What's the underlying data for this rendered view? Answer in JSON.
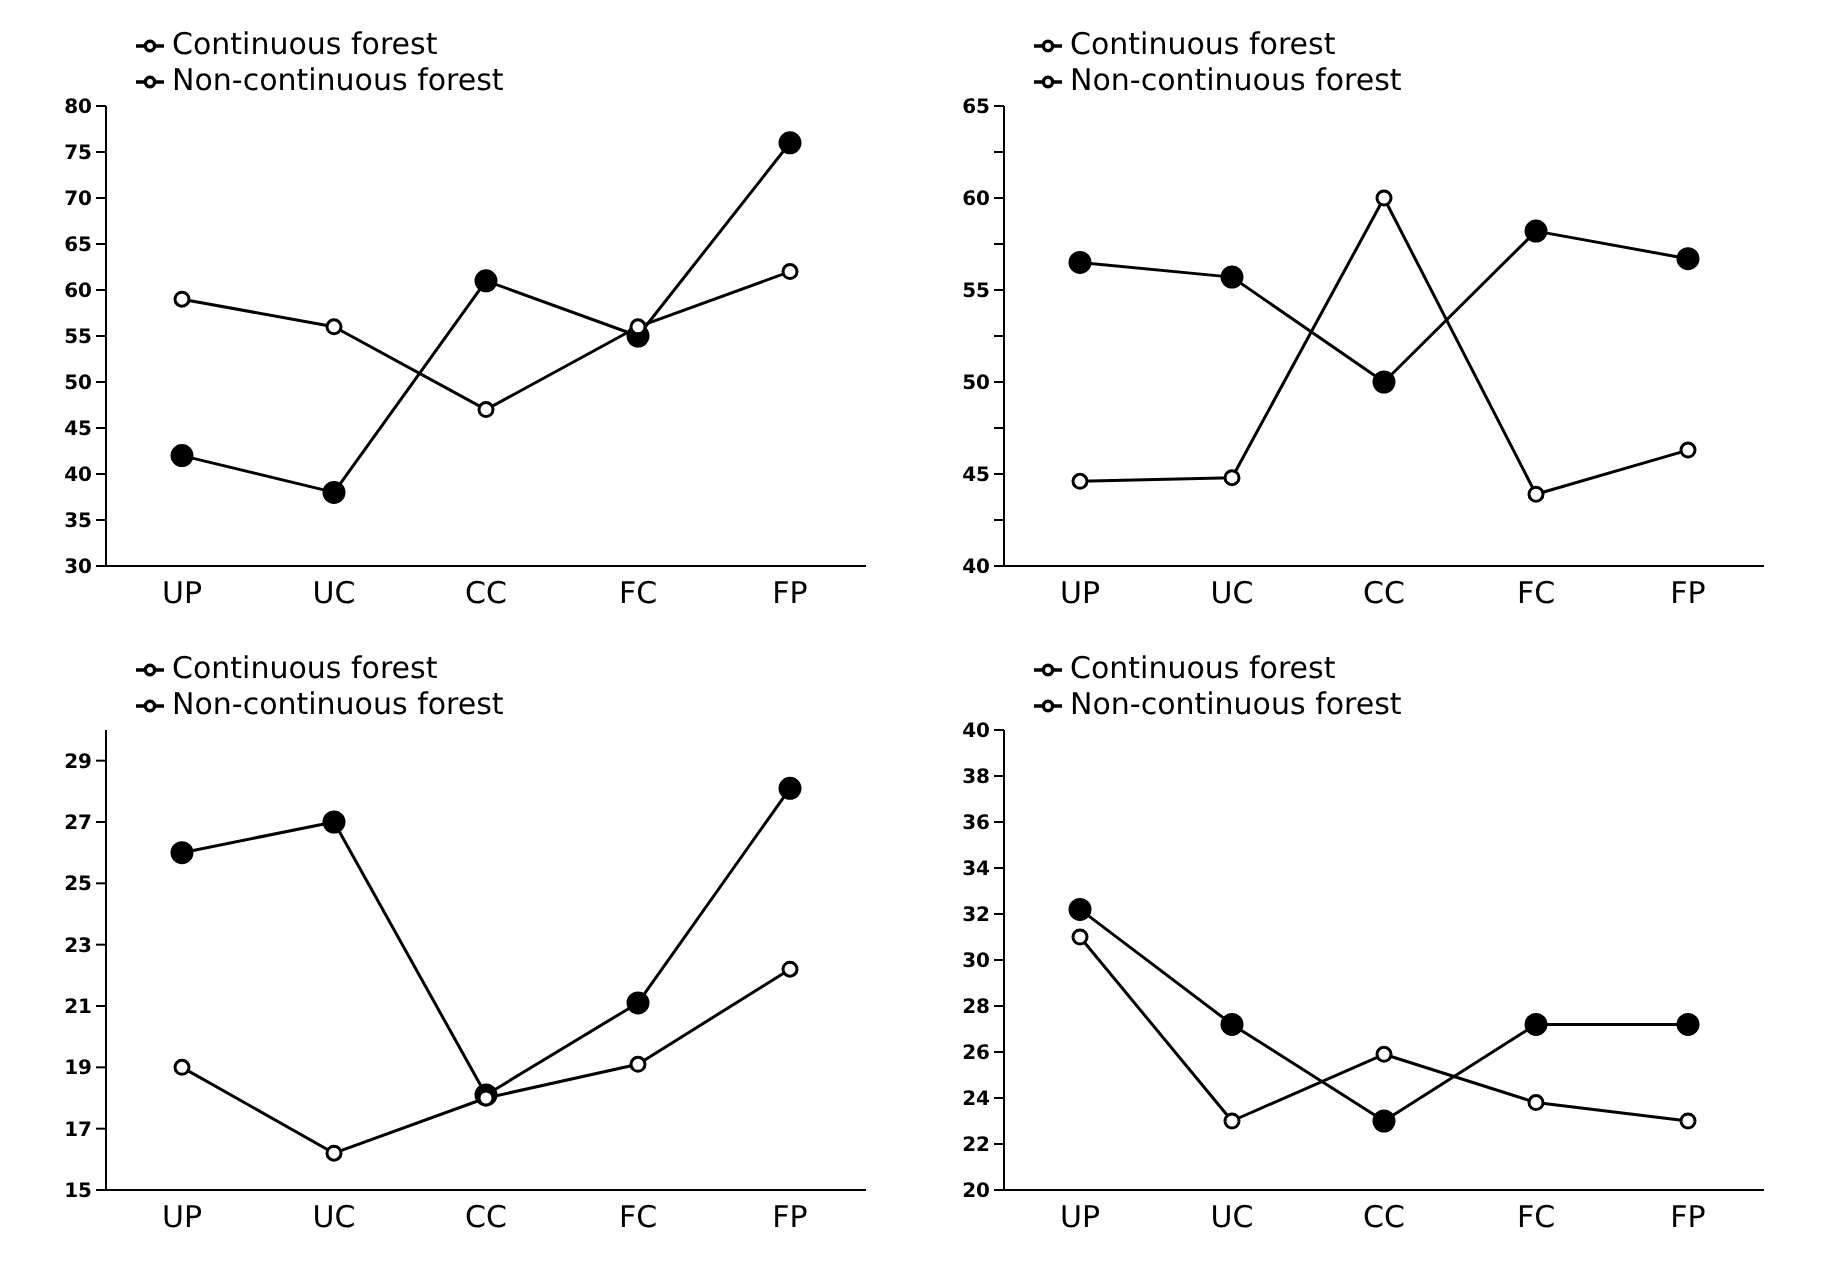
{
  "chart_data": [
    {
      "type": "line",
      "categories": [
        "UP",
        "UC",
        "CC",
        "FC",
        "FP"
      ],
      "ylim": [
        30,
        80
      ],
      "yticks": [
        30,
        35,
        40,
        45,
        50,
        55,
        60,
        65,
        70,
        75,
        80
      ],
      "marker": "circle",
      "legend": "top left",
      "grid": false,
      "series": [
        {
          "name": "Continuous forest",
          "color": "#000000",
          "values": [
            42,
            38,
            61,
            55,
            76
          ]
        },
        {
          "name": "Non-continuous forest",
          "color": "#000000",
          "values": [
            59,
            56,
            47,
            56,
            62
          ]
        }
      ]
    },
    {
      "type": "line",
      "categories": [
        "UP",
        "UC",
        "CC",
        "FC",
        "FP"
      ],
      "ylim": [
        40,
        65
      ],
      "yticks": [
        40,
        {
          "value": 42.5,
          "label": null
        },
        45,
        {
          "value": 47.5,
          "label": null
        },
        50,
        {
          "value": 52.5,
          "label": null
        },
        55,
        {
          "value": 57.5,
          "label": null
        },
        60,
        {
          "value": 62.5,
          "label": null
        },
        65
      ],
      "marker": "circle",
      "legend": "top left",
      "grid": false,
      "series": [
        {
          "name": "Continuous forest",
          "color": "#000000",
          "values": [
            56.5,
            55.7,
            50,
            58.2,
            56.7
          ]
        },
        {
          "name": "Non-continuous forest",
          "color": "#000000",
          "values": [
            44.6,
            44.8,
            60,
            43.9,
            46.3
          ]
        }
      ]
    },
    {
      "type": "line",
      "categories": [
        "UP",
        "UC",
        "CC",
        "FC",
        "FP"
      ],
      "ylim": [
        15,
        30
      ],
      "yticks": [
        15,
        17,
        19,
        21,
        23,
        25,
        27,
        29
      ],
      "marker": "circle",
      "legend": "top left",
      "grid": false,
      "series": [
        {
          "name": "Continuous forest",
          "color": "#000000",
          "values": [
            26,
            27,
            18.1,
            21.1,
            28.1
          ]
        },
        {
          "name": "Non-continuous forest",
          "color": "#000000",
          "values": [
            19,
            16.2,
            18,
            19.1,
            22.2
          ]
        }
      ]
    },
    {
      "type": "line",
      "categories": [
        "UP",
        "UC",
        "CC",
        "FC",
        "FP"
      ],
      "ylim": [
        20,
        40
      ],
      "yticks": [
        20,
        22,
        24,
        26,
        28,
        30,
        32,
        34,
        36,
        38,
        40
      ],
      "marker": "circle",
      "legend": "top left",
      "grid": false,
      "series": [
        {
          "name": "Continuous forest",
          "color": "#000000",
          "values": [
            32.2,
            27.2,
            23,
            27.2,
            27.2
          ]
        },
        {
          "name": "Non-continuous forest",
          "color": "#000000",
          "values": [
            31,
            23,
            25.9,
            23.8,
            23
          ]
        }
      ]
    }
  ]
}
